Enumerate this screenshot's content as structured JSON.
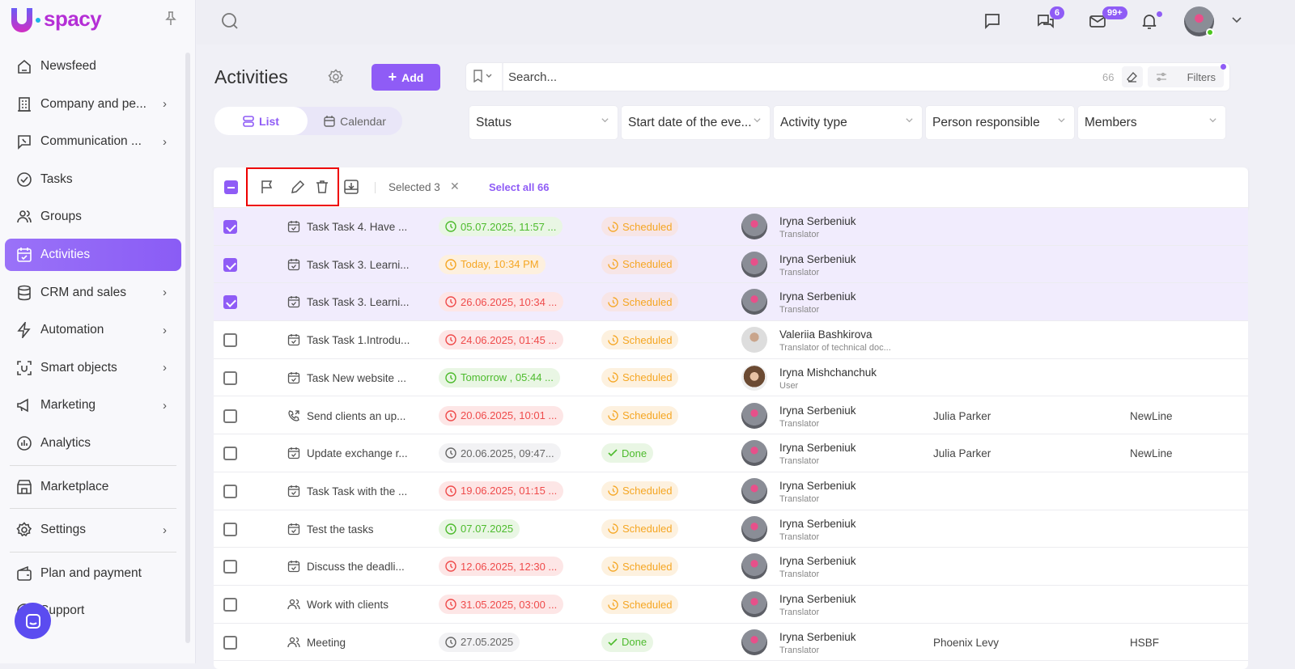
{
  "brand": {
    "name": "spacy",
    "accent": "#8f5cf6"
  },
  "sidebar": {
    "items": [
      {
        "label": "Newsfeed",
        "icon": "home-icon",
        "chevron": false
      },
      {
        "label": "Company and pe...",
        "icon": "building-icon",
        "chevron": true
      },
      {
        "label": "Communication ...",
        "icon": "phone-chat-icon",
        "chevron": true
      },
      {
        "label": "Tasks",
        "icon": "check-circle-icon",
        "chevron": false
      },
      {
        "label": "Groups",
        "icon": "users-icon",
        "chevron": false
      },
      {
        "label": "Activities",
        "icon": "calendar-check-icon",
        "chevron": false,
        "active": true
      },
      {
        "label": "CRM and sales",
        "icon": "database-icon",
        "chevron": true
      },
      {
        "label": "Automation",
        "icon": "lightning-icon",
        "chevron": true
      },
      {
        "label": "Smart objects",
        "icon": "smart-object-icon",
        "chevron": true
      },
      {
        "label": "Marketing",
        "icon": "megaphone-icon",
        "chevron": true
      },
      {
        "label": "Analytics",
        "icon": "chart-icon",
        "chevron": false
      },
      {
        "label": "Marketplace",
        "icon": "store-icon",
        "chevron": false
      },
      {
        "label": "Settings",
        "icon": "gear-icon",
        "chevron": true
      },
      {
        "label": "Plan and payment",
        "icon": "wallet-icon",
        "chevron": false
      },
      {
        "label": "Support",
        "icon": "support-icon",
        "chevron": false
      }
    ]
  },
  "topbar": {
    "chat_badge": "6",
    "mail_badge": "99+"
  },
  "header": {
    "title": "Activities",
    "add_label": "Add",
    "view_list": "List",
    "view_calendar": "Calendar"
  },
  "search": {
    "placeholder": "Search...",
    "count": "66",
    "filters_label": "Filters"
  },
  "filters": [
    "Status",
    "Start date of the eve...",
    "Activity type",
    "Person responsible",
    "Members"
  ],
  "toolbar": {
    "selected": "Selected 3",
    "select_all": "Select all 66"
  },
  "rows": [
    {
      "selected": true,
      "type": "task",
      "name": "Task Task 4. Have ...",
      "date": "05.07.2025, 11:57 ...",
      "date_tone": "green",
      "status": "Scheduled",
      "person": "Iryna Serbeniuk",
      "role": "Translator",
      "c6": "",
      "c7": ""
    },
    {
      "selected": true,
      "type": "task",
      "name": "Task Task 3. Learni...",
      "date": "Today, 10:34 PM",
      "date_tone": "orange",
      "status": "Scheduled",
      "person": "Iryna Serbeniuk",
      "role": "Translator",
      "c6": "",
      "c7": ""
    },
    {
      "selected": true,
      "type": "task",
      "name": "Task Task 3. Learni...",
      "date": "26.06.2025, 10:34 ...",
      "date_tone": "red",
      "status": "Scheduled",
      "person": "Iryna Serbeniuk",
      "role": "Translator",
      "c6": "",
      "c7": ""
    },
    {
      "selected": false,
      "type": "task",
      "name": "Task Task 1.Introdu...",
      "date": "24.06.2025, 01:45 ...",
      "date_tone": "red",
      "status": "Scheduled",
      "person": "Valeriia Bashkirova",
      "role": "Translator of technical doc...",
      "c6": "",
      "c7": ""
    },
    {
      "selected": false,
      "type": "task",
      "name": "Task New website ...",
      "date": "Tomorrow , 05:44 ...",
      "date_tone": "green",
      "status": "Scheduled",
      "person": "Iryna Mishchanchuk",
      "role": "User",
      "c6": "",
      "c7": ""
    },
    {
      "selected": false,
      "type": "call",
      "name": "Send clients an up...",
      "date": "20.06.2025, 10:01 ...",
      "date_tone": "red",
      "status": "Scheduled",
      "person": "Iryna Serbeniuk",
      "role": "Translator",
      "c6": "Julia Parker",
      "c7": "NewLine"
    },
    {
      "selected": false,
      "type": "task",
      "name": "Update exchange r...",
      "date": "20.06.2025, 09:47...",
      "date_tone": "gray",
      "status": "Done",
      "person": "Iryna Serbeniuk",
      "role": "Translator",
      "c6": "Julia Parker",
      "c7": "NewLine"
    },
    {
      "selected": false,
      "type": "task",
      "name": "Task Task with the ...",
      "date": "19.06.2025, 01:15 ...",
      "date_tone": "red",
      "status": "Scheduled",
      "person": "Iryna Serbeniuk",
      "role": "Translator",
      "c6": "",
      "c7": ""
    },
    {
      "selected": false,
      "type": "task",
      "name": "Test the tasks",
      "date": "07.07.2025",
      "date_tone": "green",
      "status": "Scheduled",
      "person": "Iryna Serbeniuk",
      "role": "Translator",
      "c6": "",
      "c7": ""
    },
    {
      "selected": false,
      "type": "task",
      "name": "Discuss the deadli...",
      "date": "12.06.2025, 12:30 ...",
      "date_tone": "red",
      "status": "Scheduled",
      "person": "Iryna Serbeniuk",
      "role": "Translator",
      "c6": "",
      "c7": ""
    },
    {
      "selected": false,
      "type": "meeting",
      "name": "Work with clients",
      "date": "31.05.2025, 03:00 ...",
      "date_tone": "red",
      "status": "Scheduled",
      "person": "Iryna Serbeniuk",
      "role": "Translator",
      "c6": "",
      "c7": ""
    },
    {
      "selected": false,
      "type": "meeting",
      "name": "Meeting",
      "date": "27.05.2025",
      "date_tone": "gray",
      "status": "Done",
      "person": "Iryna Serbeniuk",
      "role": "Translator",
      "c6": "Phoenix Levy",
      "c7": "HSBF"
    }
  ]
}
